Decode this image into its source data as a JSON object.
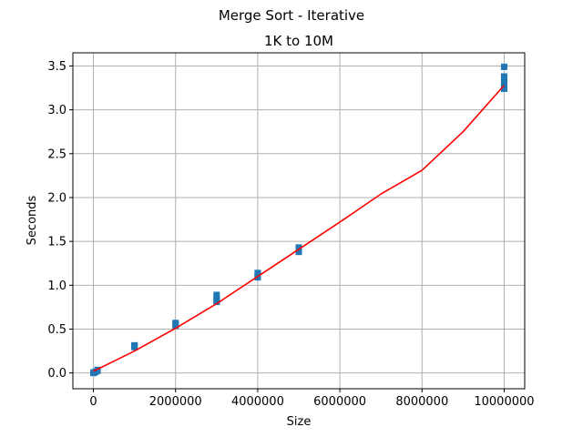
{
  "chart_data": {
    "type": "scatter",
    "suptitle": "Merge Sort - Iterative",
    "title": "1K to 10M",
    "xlabel": "Size",
    "ylabel": "Seconds",
    "xlim": [
      -500000,
      10500000
    ],
    "ylim": [
      -0.18,
      3.65
    ],
    "x_ticks": [
      0,
      2000000,
      4000000,
      6000000,
      8000000,
      10000000
    ],
    "x_tick_labels": [
      "0",
      "2000000",
      "4000000",
      "6000000",
      "8000000",
      "10000000"
    ],
    "y_ticks": [
      0.0,
      0.5,
      1.0,
      1.5,
      2.0,
      2.5,
      3.0,
      3.5
    ],
    "y_tick_labels": [
      "0.0",
      "0.5",
      "1.0",
      "1.5",
      "2.0",
      "2.5",
      "3.0",
      "3.5"
    ],
    "grid": true,
    "series": [
      {
        "kind": "scatter",
        "color": "#1f77b4",
        "marker": "square",
        "points": [
          [
            1000,
            0.0
          ],
          [
            1000,
            0.003
          ],
          [
            5000,
            0.001
          ],
          [
            10000,
            0.003
          ],
          [
            10000,
            0.005
          ],
          [
            50000,
            0.012
          ],
          [
            100000,
            0.025
          ],
          [
            100000,
            0.03
          ],
          [
            100000,
            0.035
          ],
          [
            1000000,
            0.295
          ],
          [
            1000000,
            0.31
          ],
          [
            1000000,
            0.315
          ],
          [
            2000000,
            0.54
          ],
          [
            2000000,
            0.55
          ],
          [
            2000000,
            0.57
          ],
          [
            3000000,
            0.81
          ],
          [
            3000000,
            0.83
          ],
          [
            3000000,
            0.84
          ],
          [
            3000000,
            0.89
          ],
          [
            4000000,
            1.09
          ],
          [
            4000000,
            1.1
          ],
          [
            4000000,
            1.13
          ],
          [
            4000000,
            1.14
          ],
          [
            5000000,
            1.38
          ],
          [
            5000000,
            1.4
          ],
          [
            5000000,
            1.42
          ],
          [
            5000000,
            1.43
          ],
          [
            10000000,
            3.24
          ],
          [
            10000000,
            3.27
          ],
          [
            10000000,
            3.3
          ],
          [
            10000000,
            3.33
          ],
          [
            10000000,
            3.37
          ],
          [
            10000000,
            3.38
          ],
          [
            10000000,
            3.49
          ]
        ]
      },
      {
        "kind": "line",
        "color": "#ff0000",
        "x": [
          1000,
          1000000,
          2000000,
          3000000,
          4000000,
          5000000,
          6000000,
          7000000,
          8000000,
          9000000,
          10000000
        ],
        "y": [
          0.02,
          0.25,
          0.51,
          0.79,
          1.1,
          1.41,
          1.72,
          2.04,
          2.31,
          2.75,
          3.28
        ]
      }
    ]
  }
}
